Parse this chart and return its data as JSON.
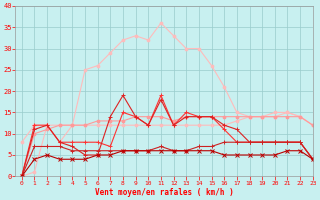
{
  "x": [
    0,
    1,
    2,
    3,
    4,
    5,
    6,
    7,
    8,
    9,
    10,
    11,
    12,
    13,
    14,
    15,
    16,
    17,
    18,
    19,
    20,
    21,
    22,
    23
  ],
  "lines": {
    "light_pink_hump": [
      0,
      1,
      12,
      8,
      12,
      25,
      26,
      29,
      32,
      33,
      32,
      36,
      33,
      30,
      30,
      26,
      21,
      15,
      14,
      14,
      15,
      15,
      14,
      12
    ],
    "light_pink_flat": [
      8,
      12,
      12,
      12,
      12,
      12,
      12,
      12,
      12,
      12,
      12,
      12,
      12,
      12,
      12,
      12,
      12,
      13,
      14,
      14,
      14,
      15,
      14,
      12
    ],
    "pink_medium": [
      0,
      10,
      11,
      12,
      12,
      12,
      13,
      13,
      13,
      14,
      14,
      14,
      13,
      14,
      14,
      14,
      14,
      14,
      14,
      14,
      14,
      14,
      14,
      12
    ],
    "dark_red_jagged": [
      0,
      11,
      12,
      8,
      7,
      5,
      5,
      14,
      19,
      14,
      12,
      18,
      12,
      14,
      14,
      14,
      12,
      11,
      8,
      8,
      8,
      8,
      8,
      4
    ],
    "red_jagged": [
      0,
      12,
      12,
      8,
      8,
      8,
      8,
      7,
      15,
      14,
      12,
      19,
      12,
      15,
      14,
      14,
      11,
      8,
      8,
      8,
      8,
      8,
      8,
      4
    ],
    "dark_flat_low": [
      0,
      4,
      5,
      4,
      4,
      4,
      5,
      5,
      6,
      6,
      6,
      6,
      6,
      6,
      6,
      6,
      5,
      5,
      5,
      5,
      5,
      6,
      6,
      4
    ],
    "red_medium_flat": [
      0,
      7,
      7,
      7,
      6,
      6,
      6,
      6,
      6,
      6,
      6,
      7,
      6,
      6,
      7,
      7,
      8,
      8,
      8,
      8,
      8,
      8,
      8,
      4
    ]
  },
  "colors": {
    "light_pink_hump": "#ffbbbb",
    "light_pink_flat": "#ffbbbb",
    "pink_medium": "#ff9999",
    "dark_red_jagged": "#dd2222",
    "red_jagged": "#ff3333",
    "dark_flat_low": "#bb0000",
    "red_medium_flat": "#cc2222"
  },
  "markers": {
    "light_pink_hump": "o",
    "light_pink_flat": "o",
    "pink_medium": "o",
    "dark_red_jagged": "+",
    "red_jagged": "+",
    "dark_flat_low": "x",
    "red_medium_flat": "+"
  },
  "bg_color": "#c8f0f0",
  "grid_color": "#99cccc",
  "xlabel": "Vent moyen/en rafales ( km/h )",
  "xlim": [
    -0.5,
    23
  ],
  "ylim": [
    0,
    40
  ],
  "yticks": [
    0,
    5,
    10,
    15,
    20,
    25,
    30,
    35,
    40
  ],
  "xticks": [
    0,
    1,
    2,
    3,
    4,
    5,
    6,
    7,
    8,
    9,
    10,
    11,
    12,
    13,
    14,
    15,
    16,
    17,
    18,
    19,
    20,
    21,
    22,
    23
  ]
}
